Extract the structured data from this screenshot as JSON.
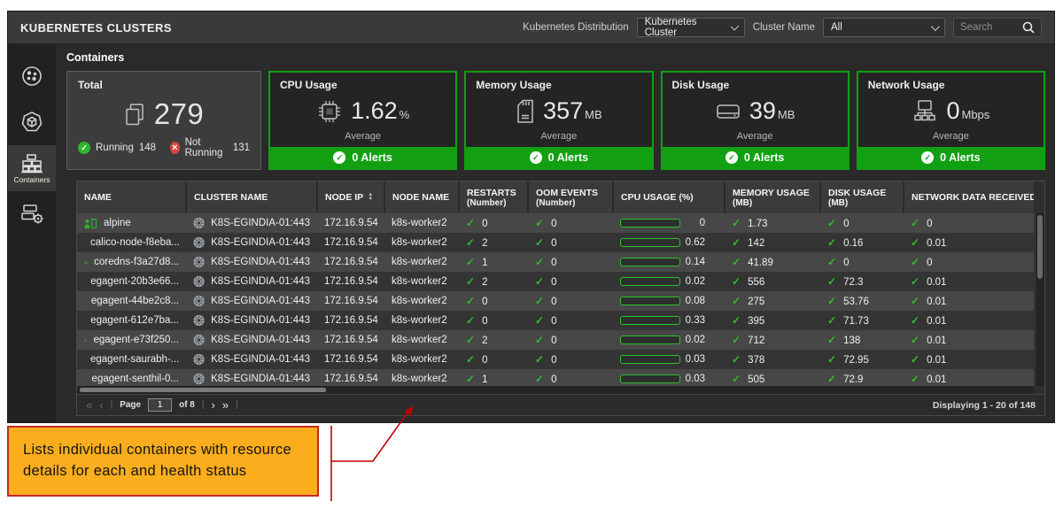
{
  "header": {
    "title": "KUBERNETES CLUSTERS",
    "distribution_label": "Kubernetes Distribution",
    "distribution_value": "Kubernetes Cluster",
    "cluster_name_label": "Cluster Name",
    "cluster_name_value": "All",
    "search_placeholder": "Search"
  },
  "sidebar": {
    "items": [
      {
        "id": "clusters",
        "label": ""
      },
      {
        "id": "nodes",
        "label": ""
      },
      {
        "id": "containers",
        "label": "Containers",
        "active": true
      },
      {
        "id": "workloads",
        "label": ""
      }
    ]
  },
  "section_title": "Containers",
  "summary": {
    "total": {
      "title": "Total",
      "count": "279",
      "running_label": "Running",
      "running_count": "148",
      "not_running_label": "Not Running",
      "not_running_count": "131"
    },
    "metrics": [
      {
        "title": "CPU Usage",
        "value": "1.62",
        "unit": "%",
        "caption": "Average",
        "alerts": "0 Alerts"
      },
      {
        "title": "Memory Usage",
        "value": "357",
        "unit": "MB",
        "caption": "Average",
        "alerts": "0 Alerts"
      },
      {
        "title": "Disk Usage",
        "value": "39",
        "unit": "MB",
        "caption": "Average",
        "alerts": "0 Alerts"
      },
      {
        "title": "Network Usage",
        "value": "0",
        "unit": "Mbps",
        "caption": "Average",
        "alerts": "0 Alerts"
      }
    ]
  },
  "table": {
    "columns": [
      {
        "label": "NAME"
      },
      {
        "label": "CLUSTER NAME"
      },
      {
        "label": "NODE IP",
        "sortable": true
      },
      {
        "label": "NODE NAME"
      },
      {
        "label": "RESTARTS",
        "sub": "(Number)"
      },
      {
        "label": "OOM EVENTS",
        "sub": "(Number)"
      },
      {
        "label": "CPU USAGE (%)"
      },
      {
        "label": "MEMORY USAGE",
        "sub": "(MB)"
      },
      {
        "label": "DISK USAGE",
        "sub": "(MB)"
      },
      {
        "label": "NETWORK DATA RECEIVED (K"
      }
    ],
    "rows": [
      {
        "name": "alpine",
        "cluster": "K8S-EGINDIA-01:443",
        "node_ip": "172.16.9.54",
        "node_name": "k8s-worker2",
        "restarts": "0",
        "oom_events": "0",
        "cpu_usage": "0",
        "memory_usage": "1.73",
        "disk_usage": "0",
        "network_received": "0"
      },
      {
        "name": "calico-node-f8eba...",
        "cluster": "K8S-EGINDIA-01:443",
        "node_ip": "172.16.9.54",
        "node_name": "k8s-worker2",
        "restarts": "2",
        "oom_events": "0",
        "cpu_usage": "0.62",
        "memory_usage": "142",
        "disk_usage": "0.16",
        "network_received": "0.01"
      },
      {
        "name": "coredns-f3a27d8...",
        "cluster": "K8S-EGINDIA-01:443",
        "node_ip": "172.16.9.54",
        "node_name": "k8s-worker2",
        "restarts": "1",
        "oom_events": "0",
        "cpu_usage": "0.14",
        "memory_usage": "41.89",
        "disk_usage": "0",
        "network_received": "0"
      },
      {
        "name": "egagent-20b3e66...",
        "cluster": "K8S-EGINDIA-01:443",
        "node_ip": "172.16.9.54",
        "node_name": "k8s-worker2",
        "restarts": "2",
        "oom_events": "0",
        "cpu_usage": "0.02",
        "memory_usage": "556",
        "disk_usage": "72.3",
        "network_received": "0.01"
      },
      {
        "name": "egagent-44be2c8...",
        "cluster": "K8S-EGINDIA-01:443",
        "node_ip": "172.16.9.54",
        "node_name": "k8s-worker2",
        "restarts": "0",
        "oom_events": "0",
        "cpu_usage": "0.08",
        "memory_usage": "275",
        "disk_usage": "53.76",
        "network_received": "0.01"
      },
      {
        "name": "egagent-612e7ba...",
        "cluster": "K8S-EGINDIA-01:443",
        "node_ip": "172.16.9.54",
        "node_name": "k8s-worker2",
        "restarts": "0",
        "oom_events": "0",
        "cpu_usage": "0.33",
        "memory_usage": "395",
        "disk_usage": "71.73",
        "network_received": "0.01"
      },
      {
        "name": "egagent-e73f250...",
        "cluster": "K8S-EGINDIA-01:443",
        "node_ip": "172.16.9.54",
        "node_name": "k8s-worker2",
        "restarts": "2",
        "oom_events": "0",
        "cpu_usage": "0.02",
        "memory_usage": "712",
        "disk_usage": "138",
        "network_received": "0.01"
      },
      {
        "name": "egagent-saurabh-...",
        "cluster": "K8S-EGINDIA-01:443",
        "node_ip": "172.16.9.54",
        "node_name": "k8s-worker2",
        "restarts": "0",
        "oom_events": "0",
        "cpu_usage": "0.03",
        "memory_usage": "378",
        "disk_usage": "72.95",
        "network_received": "0.01"
      },
      {
        "name": "egagent-senthil-0...",
        "cluster": "K8S-EGINDIA-01:443",
        "node_ip": "172.16.9.54",
        "node_name": "k8s-worker2",
        "restarts": "1",
        "oom_events": "0",
        "cpu_usage": "0.03",
        "memory_usage": "505",
        "disk_usage": "72.9",
        "network_received": "0.01"
      }
    ]
  },
  "pagination": {
    "page_label": "Page",
    "page_value": "1",
    "of_label": "of 8",
    "displaying": "Displaying 1 - 20 of 148"
  },
  "icons": {
    "first": "«",
    "prev": "‹",
    "next": "›",
    "last": "»",
    "separator": "|"
  },
  "colors": {
    "accent_green": "#12a012",
    "check_green": "#33bb33",
    "error_red": "#d64541",
    "callout_bg": "#FBAD1E",
    "callout_border": "#C62828",
    "arrow_red": "#C00000"
  },
  "callout": {
    "text": "Lists individual containers with resource details for each and health status"
  }
}
